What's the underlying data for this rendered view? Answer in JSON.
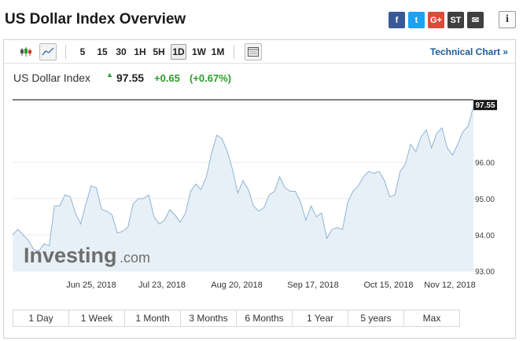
{
  "page": {
    "title": "US Dollar Index Overview"
  },
  "share": {
    "items": [
      {
        "name": "facebook-icon",
        "glyph": "f",
        "color": "#3b5998"
      },
      {
        "name": "twitter-icon",
        "glyph": "t",
        "color": "#1da1f2"
      },
      {
        "name": "google-plus-icon",
        "glyph": "G+",
        "color": "#dd4b39"
      },
      {
        "name": "stocktwits-icon",
        "glyph": "ST",
        "color": "#404040"
      },
      {
        "name": "email-icon",
        "glyph": "✉",
        "color": "#404040"
      }
    ],
    "info_glyph": "i"
  },
  "toolbar": {
    "intervals": [
      "5",
      "15",
      "30",
      "1H",
      "5H",
      "1D",
      "1W",
      "1M"
    ],
    "active_interval": "1D",
    "technical_chart": "Technical Chart »"
  },
  "instrument": {
    "name": "US Dollar Index",
    "price": "97.55",
    "change": "+0.65",
    "change_pct": "(+0.67%)",
    "direction_glyph": "▲"
  },
  "chart_data": {
    "type": "area",
    "y_ticks": [
      "93.00",
      "94.00",
      "95.00",
      "96.00"
    ],
    "last_price_label": "97.55",
    "x_ticks": [
      "Jun 25, 2018",
      "Jul 23, 2018",
      "Aug 20, 2018",
      "Sep 17, 2018",
      "Oct 15, 2018",
      "Nov 12, 2018"
    ],
    "ylim": [
      93.0,
      97.9
    ],
    "last_value": 97.55,
    "values": [
      94.0,
      94.15,
      94.0,
      93.85,
      93.6,
      93.55,
      93.75,
      93.7,
      94.8,
      94.8,
      95.1,
      95.05,
      94.6,
      94.3,
      94.85,
      95.35,
      95.3,
      94.7,
      94.65,
      94.55,
      94.05,
      94.1,
      94.2,
      94.85,
      95.0,
      95.0,
      95.1,
      94.5,
      94.3,
      94.4,
      94.7,
      94.55,
      94.35,
      94.6,
      95.2,
      95.4,
      95.25,
      95.6,
      96.25,
      96.75,
      96.65,
      96.3,
      95.8,
      95.15,
      95.5,
      95.25,
      94.8,
      94.65,
      94.75,
      95.1,
      95.2,
      95.6,
      95.3,
      95.2,
      95.2,
      94.9,
      94.4,
      94.8,
      94.5,
      94.6,
      93.9,
      94.15,
      94.2,
      94.15,
      94.9,
      95.2,
      95.35,
      95.6,
      95.75,
      95.7,
      95.75,
      95.5,
      95.05,
      95.1,
      95.75,
      95.95,
      96.5,
      96.3,
      96.7,
      96.9,
      96.4,
      96.8,
      96.95,
      96.4,
      96.2,
      96.5,
      96.85,
      97.0,
      97.55
    ]
  },
  "ranges": [
    "1 Day",
    "1 Week",
    "1 Month",
    "3 Months",
    "6 Months",
    "1 Year",
    "5 years",
    "Max"
  ],
  "watermark": {
    "brand": "Investing",
    "suffix": ".com"
  }
}
